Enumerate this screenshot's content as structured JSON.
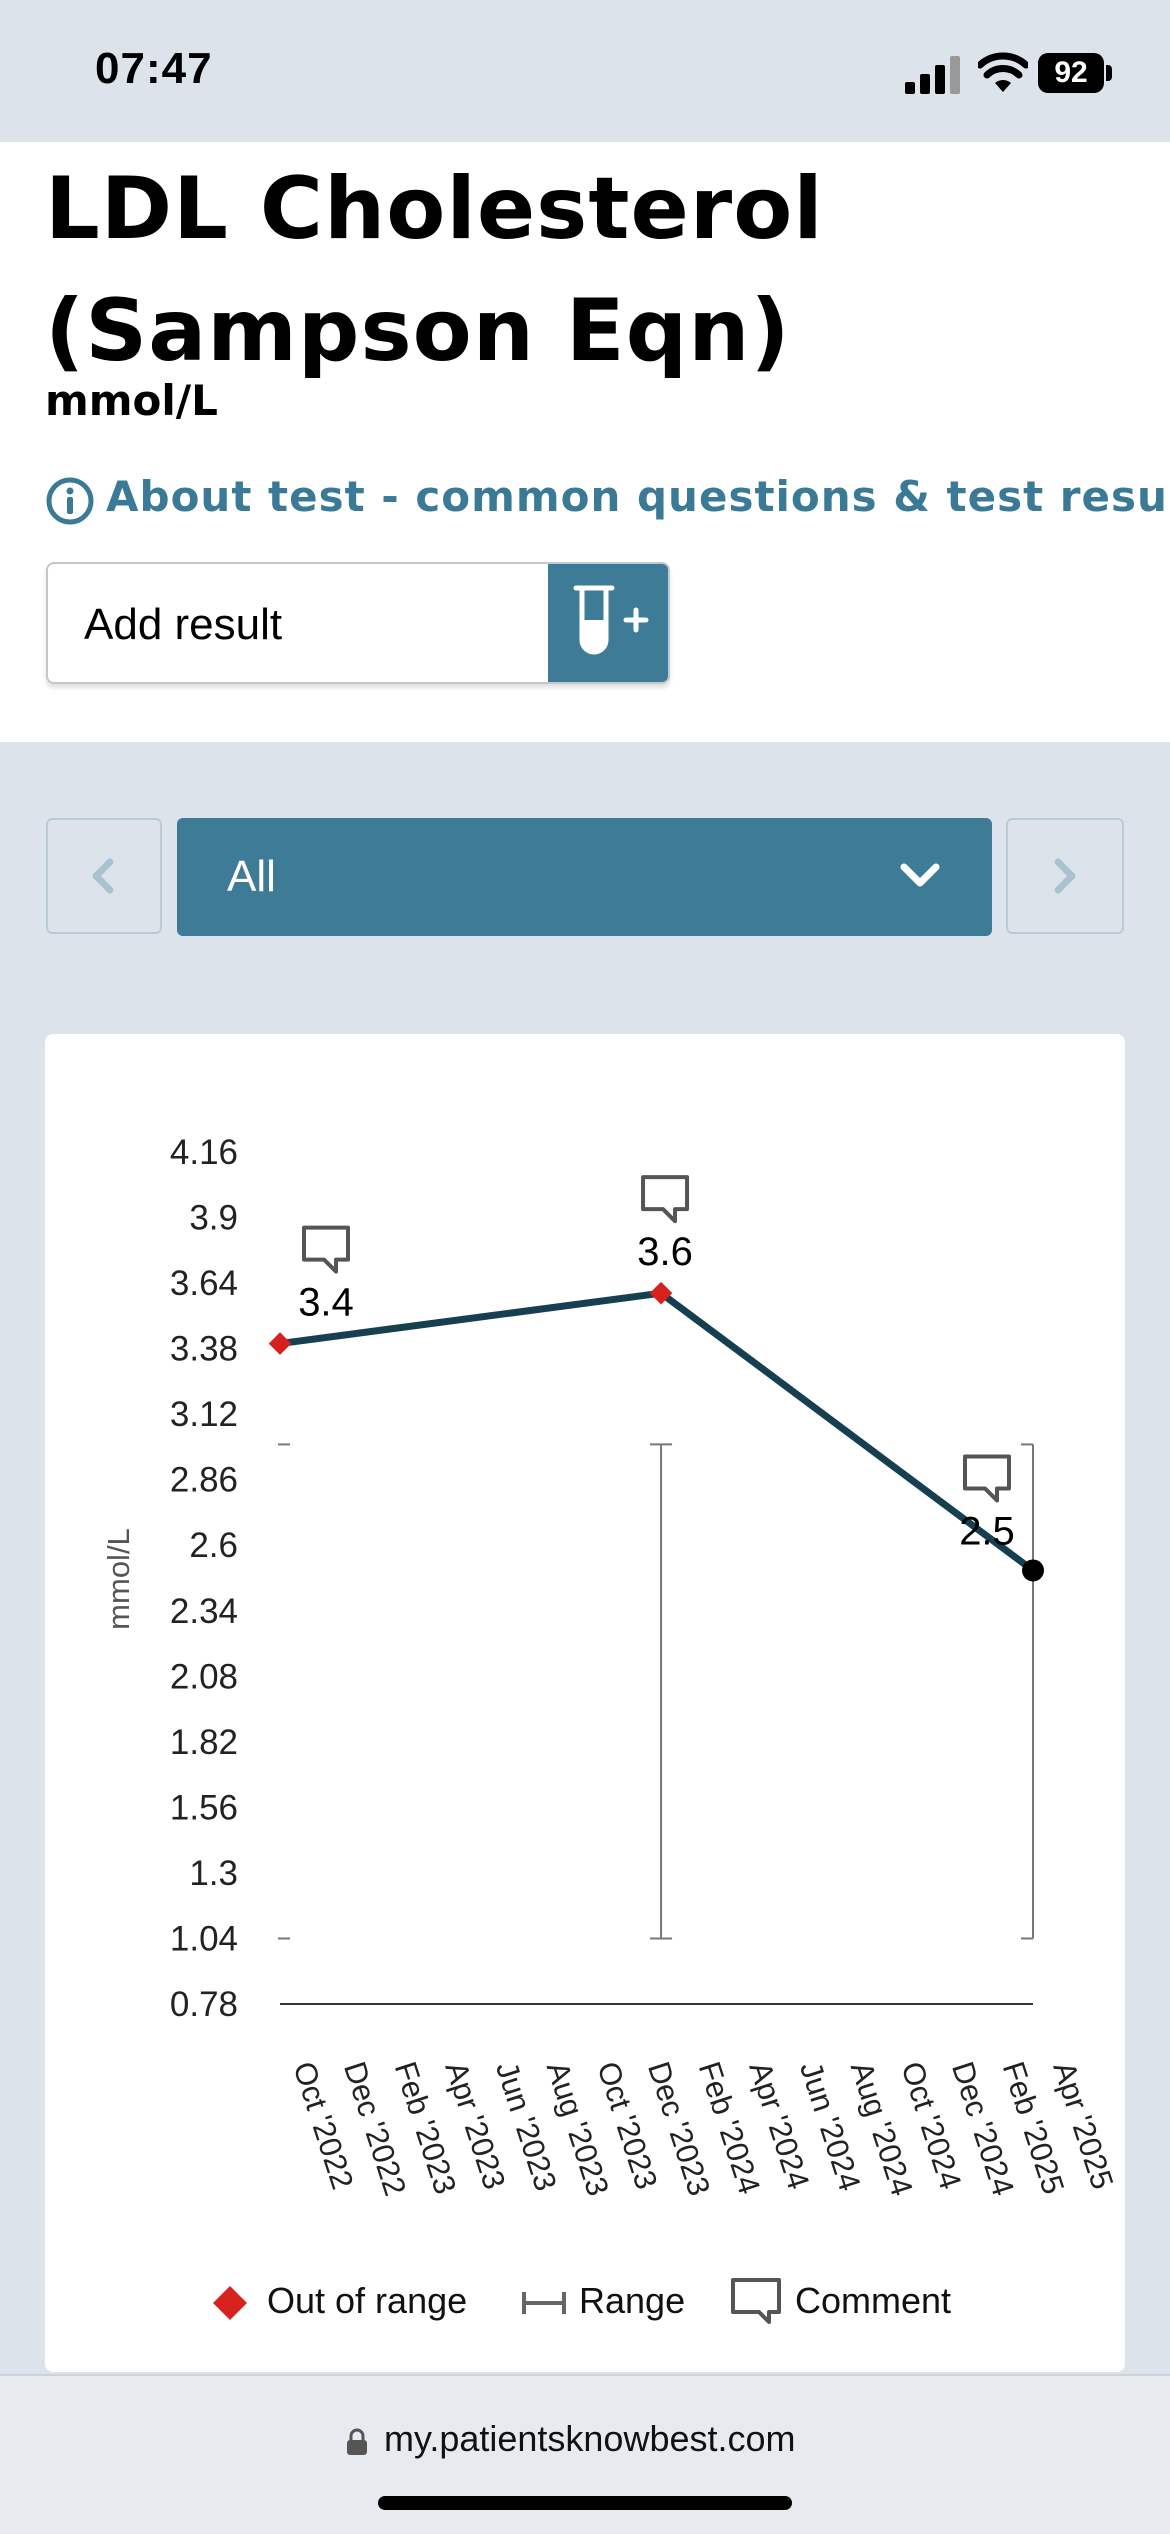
{
  "status_bar": {
    "time": "07:47",
    "battery": "92"
  },
  "header": {
    "title_line1": "LDL Cholesterol",
    "title_line2": "(Sampson Eqn)",
    "units": "mmol/L",
    "about_link": "About test - common questions & test result guide",
    "add_result_label": "Add result"
  },
  "filter": {
    "selected": "All"
  },
  "colors": {
    "accent": "#3e7b96",
    "line": "#173f52",
    "out_of_range": "#d6211f",
    "link": "#3b7a96"
  },
  "chart_data": {
    "type": "line",
    "ylabel": "mmol/L",
    "y_ticks": [
      "4.16",
      "3.9",
      "3.64",
      "3.38",
      "3.12",
      "2.86",
      "2.6",
      "2.34",
      "2.08",
      "1.82",
      "1.56",
      "1.3",
      "1.04",
      "0.78"
    ],
    "ylim": [
      0.78,
      4.16
    ],
    "x_ticks": [
      "Oct '2022",
      "Dec '2022",
      "Feb '2023",
      "Apr '2023",
      "Jun '2023",
      "Aug '2023",
      "Oct '2023",
      "Dec '2023",
      "Feb '2024",
      "Apr '2024",
      "Jun '2024",
      "Aug '2024",
      "Oct '2024",
      "Dec '2024",
      "Feb '2025",
      "Apr '2025"
    ],
    "points": [
      {
        "x": "2022-10-20",
        "y": 3.4,
        "label": "3.4",
        "out_of_range": true,
        "has_comment": true
      },
      {
        "x": "2024-01-25",
        "y": 3.6,
        "label": "3.6",
        "out_of_range": true,
        "has_comment": true
      },
      {
        "x": "2025-04-20",
        "y": 2.5,
        "label": "2.5",
        "out_of_range": false,
        "has_comment": true
      }
    ],
    "ranges": [
      {
        "x": "2022-10-20",
        "low": 1.04,
        "high": 3.0
      },
      {
        "x": "2024-01-25",
        "low": 1.04,
        "high": 3.0
      },
      {
        "x": "2025-04-20",
        "low": 1.04,
        "high": 3.0
      }
    ],
    "legend": [
      "Out of range",
      "Range",
      "Comment"
    ]
  },
  "browser": {
    "url": "my.patientsknowbest.com"
  }
}
